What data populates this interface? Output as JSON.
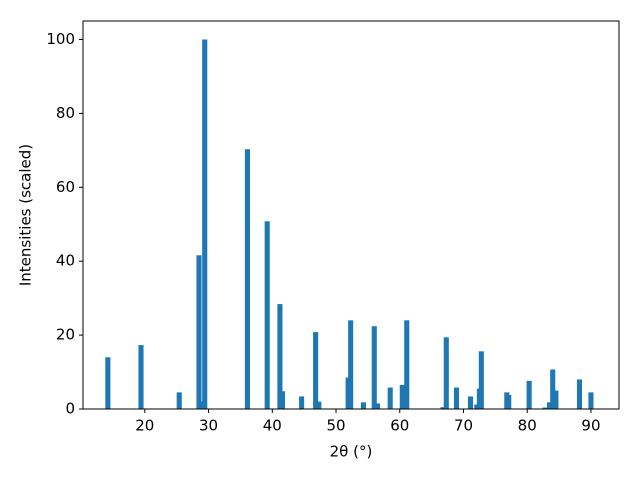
{
  "chart_data": {
    "type": "bar",
    "xlabel": "2θ (°)",
    "ylabel": "Intensities (scaled)",
    "color": "#1f77b4",
    "bar_width": 0.8,
    "x": [
      14.2,
      19.4,
      25.4,
      28.5,
      29.0,
      29.4,
      36.1,
      39.2,
      41.2,
      41.6,
      44.6,
      46.8,
      47.3,
      51.9,
      52.3,
      54.3,
      56.0,
      56.5,
      58.5,
      60.4,
      61.1,
      66.8,
      67.3,
      68.9,
      71.1,
      72.1,
      72.5,
      72.8,
      76.8,
      77.1,
      80.3,
      82.8,
      83.5,
      84.0,
      84.5,
      88.2,
      90.0
    ],
    "values": [
      14,
      17.3,
      4.5,
      41.6,
      2,
      100,
      70.3,
      50.8,
      28.4,
      4.8,
      3.4,
      20.8,
      2,
      8.5,
      24,
      1.8,
      22.4,
      1.5,
      5.8,
      6.5,
      24,
      0.5,
      19.4,
      5.8,
      3.4,
      1.2,
      5.5,
      15.6,
      4.5,
      3.8,
      7.6,
      0.4,
      1.8,
      10.7,
      5,
      8,
      4.5
    ],
    "xlim": [
      10.3,
      94.4
    ],
    "xticks": [
      20,
      30,
      40,
      50,
      60,
      70,
      80,
      90
    ],
    "ylim": [
      0,
      105
    ],
    "yticks": [
      0,
      20,
      40,
      60,
      80,
      100
    ],
    "grid": false
  }
}
